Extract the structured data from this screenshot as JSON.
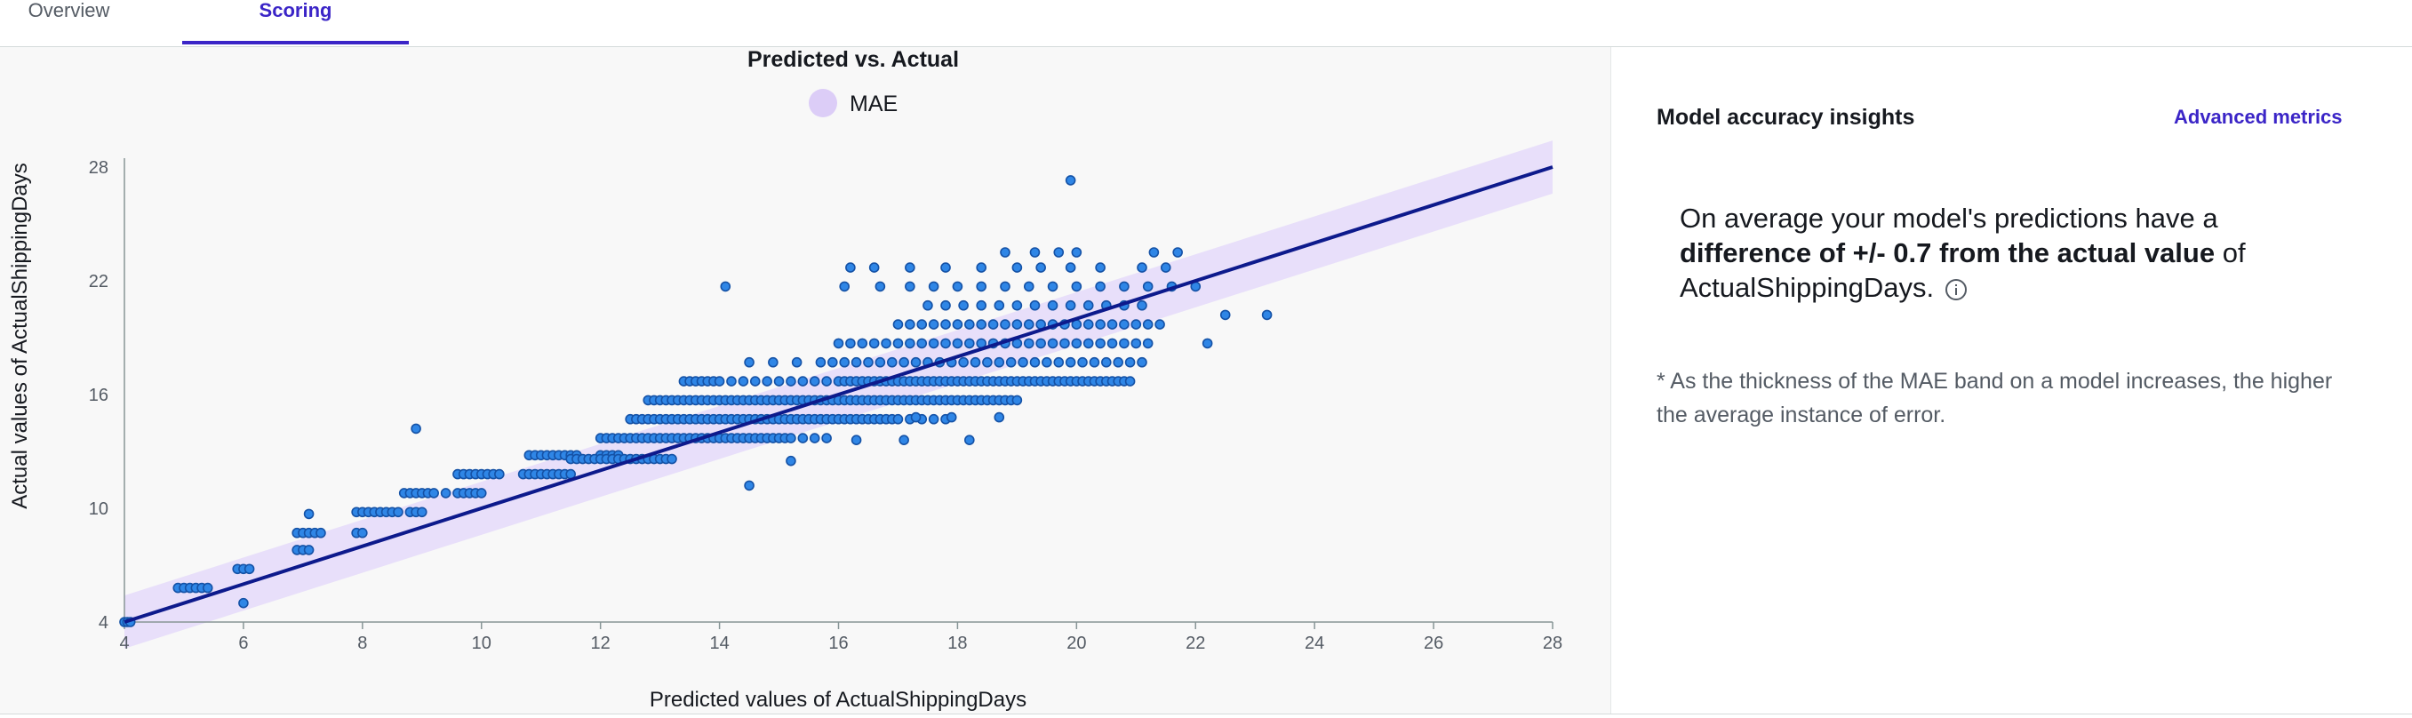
{
  "tabs": {
    "overview": "Overview",
    "scoring": "Scoring"
  },
  "chart_data": {
    "type": "scatter",
    "title": "Predicted vs. Actual",
    "legend": [
      "MAE"
    ],
    "legend_placement": "top-center",
    "xlabel": "Predicted values of ActualShippingDays",
    "ylabel": "Actual values of ActualShippingDays",
    "xlim": [
      4,
      28
    ],
    "ylim": [
      4,
      28
    ],
    "x_ticks": [
      4,
      6,
      8,
      10,
      12,
      14,
      16,
      18,
      20,
      22,
      24,
      26,
      28
    ],
    "y_ticks": [
      4,
      10,
      16,
      22,
      28
    ],
    "grid": false,
    "fit_line": {
      "x": [
        4,
        28
      ],
      "y": [
        4,
        28
      ]
    },
    "mae_band": 0.7,
    "colors": {
      "points": "#2f86e6",
      "points_stroke": "#1552a6",
      "line": "#0d1a8c",
      "band": "#e6dcfa",
      "legend_swatch": "#dccdf7"
    },
    "point_rows": [
      {
        "y": 4,
        "x": [
          4.0,
          4.05,
          4.1
        ]
      },
      {
        "y": 5,
        "x": [
          6.0
        ]
      },
      {
        "y": 5.8,
        "x": [
          4.9,
          5.0,
          5.1,
          5.2,
          5.3,
          5.4
        ]
      },
      {
        "y": 6.8,
        "x": [
          5.9,
          6.0,
          6.1
        ]
      },
      {
        "y": 7.8,
        "x": [
          6.9,
          7.0,
          7.1
        ]
      },
      {
        "y": 8.7,
        "x": [
          7.9,
          8.0
        ]
      },
      {
        "y": 8.7,
        "x": [
          6.9,
          7.0,
          7.1,
          7.2,
          7.3
        ]
      },
      {
        "y": 9.8,
        "x": [
          7.9,
          8.0,
          8.1,
          8.2,
          8.3,
          8.4,
          8.5,
          8.6
        ]
      },
      {
        "y": 9.7,
        "x": [
          7.1
        ]
      },
      {
        "y": 9.8,
        "x": [
          8.8,
          8.9,
          9.0
        ]
      },
      {
        "y": 10.8,
        "x": [
          8.7,
          8.8,
          8.9,
          9.0,
          9.1,
          9.2,
          9.4,
          9.6,
          9.7,
          9.8,
          9.9,
          10.0
        ]
      },
      {
        "y": 11.8,
        "x": [
          9.6,
          9.7,
          9.8,
          9.9,
          10.0,
          10.1,
          10.2,
          10.3,
          10.7,
          10.8,
          10.9,
          11.0,
          11.1,
          11.2,
          11.3,
          11.4,
          11.5
        ]
      },
      {
        "y": 12.8,
        "x": [
          10.8,
          10.9,
          11.0,
          11.1,
          11.2,
          11.3,
          11.4,
          11.5,
          11.6,
          12.0,
          12.1,
          12.2,
          12.3
        ]
      },
      {
        "y": 12.6,
        "x": [
          11.5,
          11.6,
          11.7,
          11.8,
          11.9,
          12.0,
          12.1,
          12.2,
          12.3,
          12.4,
          12.5,
          12.6,
          12.7,
          12.8,
          12.9,
          13.0,
          13.1,
          13.2
        ]
      },
      {
        "y": 13.7,
        "x": [
          12.0,
          12.1,
          12.2,
          12.3,
          12.4,
          12.5,
          12.6,
          12.7,
          12.8,
          12.9,
          13.0,
          13.1,
          13.2,
          13.3,
          13.4,
          13.5,
          13.6,
          13.7,
          13.8,
          13.9,
          14.0,
          14.1,
          14.2,
          14.3,
          14.4,
          14.5,
          14.6,
          14.7,
          14.8,
          14.9,
          15.0,
          15.1,
          15.2,
          15.4,
          15.6,
          15.8
        ]
      },
      {
        "y": 14.7,
        "x": [
          12.5,
          12.6,
          12.7,
          12.8,
          12.9,
          13.0,
          13.1,
          13.2,
          13.3,
          13.4,
          13.5,
          13.6,
          13.7,
          13.8,
          13.9,
          14.0,
          14.1,
          14.2,
          14.3,
          14.4,
          14.5,
          14.6,
          14.7,
          14.8,
          14.9,
          15.0,
          15.1,
          15.2,
          15.3,
          15.4,
          15.5,
          15.6,
          15.7,
          15.8,
          15.9,
          16.0,
          16.1,
          16.2,
          16.3,
          16.4,
          16.5,
          16.6,
          16.7,
          16.8,
          16.9,
          17.0,
          17.2,
          17.4,
          17.6,
          17.8
        ]
      },
      {
        "y": 15.7,
        "x": [
          12.8,
          12.9,
          13.0,
          13.1,
          13.2,
          13.3,
          13.4,
          13.5,
          13.6,
          13.7,
          13.8,
          13.9,
          14.0,
          14.1,
          14.2,
          14.3,
          14.4,
          14.5,
          14.6,
          14.7,
          14.8,
          14.9,
          15.0,
          15.1,
          15.2,
          15.3,
          15.4,
          15.5,
          15.6,
          15.7,
          15.8,
          15.9,
          16.0,
          16.1,
          16.2,
          16.3,
          16.4,
          16.5,
          16.6,
          16.7,
          16.8,
          16.9,
          17.0,
          17.1,
          17.2,
          17.3,
          17.4,
          17.5,
          17.6,
          17.7,
          17.8,
          17.9,
          18.0,
          18.1,
          18.2,
          18.3,
          18.4,
          18.5,
          18.6,
          18.7,
          18.8,
          18.9,
          19.0
        ]
      },
      {
        "y": 16.7,
        "x": [
          13.4,
          13.5,
          13.6,
          13.7,
          13.8,
          13.9,
          14.0,
          14.2,
          14.4,
          14.6,
          14.8,
          15.0,
          15.2,
          15.4,
          15.6,
          15.8,
          16.0,
          16.1,
          16.2,
          16.3,
          16.4,
          16.5,
          16.6,
          16.7,
          16.8,
          16.9,
          17.0,
          17.1,
          17.2,
          17.3,
          17.4,
          17.5,
          17.6,
          17.7,
          17.8,
          17.9,
          18.0,
          18.1,
          18.2,
          18.3,
          18.4,
          18.5,
          18.6,
          18.7,
          18.8,
          18.9,
          19.0,
          19.1,
          19.2,
          19.3,
          19.4,
          19.5,
          19.6,
          19.7,
          19.8,
          19.9,
          20.0,
          20.1,
          20.2,
          20.3,
          20.4,
          20.5,
          20.6,
          20.7,
          20.8,
          20.9
        ]
      },
      {
        "y": 17.7,
        "x": [
          14.5,
          14.9,
          15.3,
          15.7,
          15.9,
          16.1,
          16.3,
          16.5,
          16.7,
          16.9,
          17.1,
          17.3,
          17.5,
          17.7,
          17.9,
          18.1,
          18.3,
          18.5,
          18.7,
          18.9,
          19.1,
          19.3,
          19.5,
          19.7,
          19.9,
          20.1,
          20.3,
          20.5,
          20.7,
          20.9,
          21.1
        ]
      },
      {
        "y": 18.7,
        "x": [
          16.0,
          16.2,
          16.4,
          16.6,
          16.8,
          17.0,
          17.2,
          17.4,
          17.6,
          17.8,
          18.0,
          18.2,
          18.4,
          18.6,
          18.8,
          19.0,
          19.2,
          19.4,
          19.6,
          19.8,
          20.0,
          20.2,
          20.4,
          20.6,
          20.8,
          21.0,
          21.2
        ]
      },
      {
        "y": 19.7,
        "x": [
          17.0,
          17.2,
          17.4,
          17.6,
          17.8,
          18.0,
          18.2,
          18.4,
          18.6,
          18.8,
          19.0,
          19.2,
          19.4,
          19.6,
          19.8,
          20.0,
          20.2,
          20.4,
          20.6,
          20.8,
          21.0,
          21.2,
          21.4
        ]
      },
      {
        "y": 20.7,
        "x": [
          17.5,
          17.8,
          18.1,
          18.4,
          18.7,
          19.0,
          19.3,
          19.6,
          19.9,
          20.2,
          20.5,
          20.8,
          21.1
        ]
      },
      {
        "y": 21.7,
        "x": [
          14.1,
          16.1,
          16.7,
          17.2,
          17.6,
          18.0,
          18.4,
          18.8,
          19.2,
          19.6,
          20.0,
          20.4,
          20.8,
          21.2,
          21.6,
          22.0
        ]
      },
      {
        "y": 22.7,
        "x": [
          16.2,
          16.6,
          17.2,
          17.8,
          18.4,
          19.0,
          19.4,
          19.9,
          20.4,
          21.1,
          21.5
        ]
      },
      {
        "y": 23.5,
        "x": [
          18.8,
          19.3,
          19.7,
          20.0,
          21.3,
          21.7
        ]
      },
      {
        "y": 20.2,
        "x": [
          22.5,
          23.2
        ]
      },
      {
        "y": 18.7,
        "x": [
          22.2
        ]
      },
      {
        "y": 11.2,
        "x": [
          14.5
        ]
      },
      {
        "y": 12.5,
        "x": [
          15.2
        ]
      },
      {
        "y": 13.6,
        "x": [
          16.3,
          17.1,
          18.2
        ]
      },
      {
        "y": 14.8,
        "x": [
          17.3,
          17.9,
          18.7
        ]
      },
      {
        "y": 14.2,
        "x": [
          8.9
        ]
      },
      {
        "y": 27.3,
        "x": [
          19.9
        ]
      }
    ]
  },
  "insights": {
    "title": "Model accuracy insights",
    "advanced_metrics": "Advanced metrics",
    "summary_part1": "On average your model's predictions have a ",
    "summary_bold": "difference of +/- 0.7 from the actual value",
    "summary_part2": " of ActualShippingDays.",
    "footnote": "* As the thickness of the MAE band on a model increases, the higher the average instance of error."
  }
}
